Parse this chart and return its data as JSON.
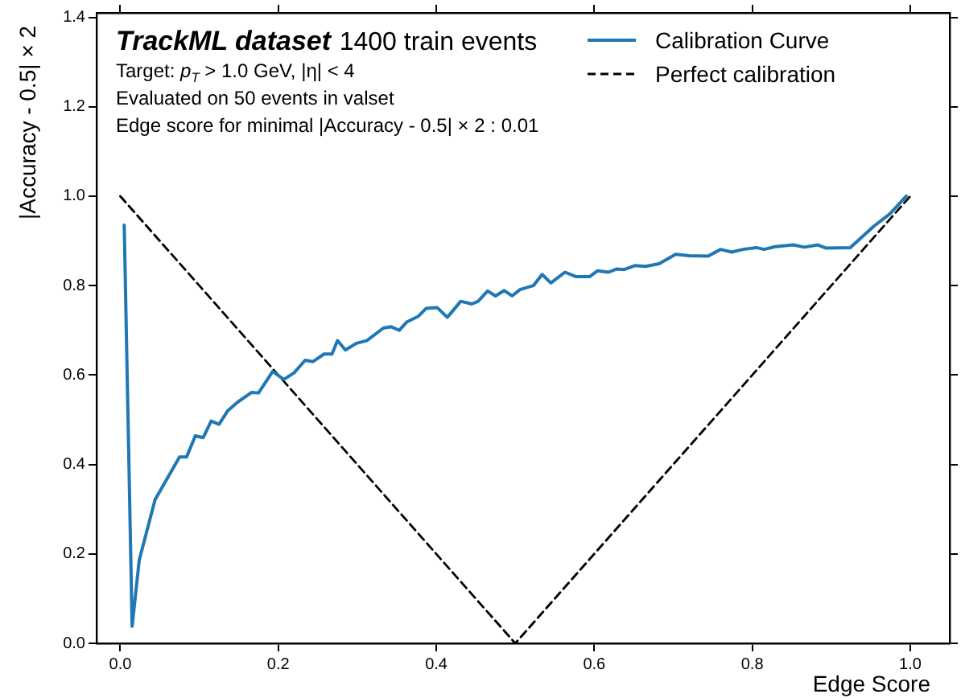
{
  "chart_data": {
    "type": "line",
    "title": "TrackML dataset",
    "subtitle": "1400 train events",
    "xlabel": "Edge Score",
    "ylabel": "|Accuracy - 0.5| × 2",
    "annotations": [
      "Target: p$_{T}$ > 1.0 GeV, |η| < 4",
      "Evaluated on 50 events in valset",
      "Edge score for minimal |Accuracy - 0.5| × 2 : 0.01"
    ],
    "series": [
      {
        "name": "Calibration Curve",
        "color": "#1f77b4",
        "line_style": "solid",
        "x": [
          0.005,
          0.015,
          0.024,
          0.044,
          0.075,
          0.084,
          0.095,
          0.105,
          0.115,
          0.125,
          0.136,
          0.149,
          0.166,
          0.175,
          0.193,
          0.207,
          0.22,
          0.234,
          0.244,
          0.258,
          0.268,
          0.275,
          0.285,
          0.299,
          0.312,
          0.333,
          0.343,
          0.353,
          0.363,
          0.377,
          0.387,
          0.401,
          0.414,
          0.431,
          0.445,
          0.453,
          0.465,
          0.475,
          0.486,
          0.496,
          0.506,
          0.523,
          0.534,
          0.545,
          0.563,
          0.577,
          0.594,
          0.604,
          0.618,
          0.628,
          0.638,
          0.652,
          0.665,
          0.682,
          0.703,
          0.72,
          0.744,
          0.76,
          0.774,
          0.788,
          0.805,
          0.815,
          0.829,
          0.852,
          0.866,
          0.883,
          0.893,
          0.924,
          0.954,
          0.974,
          0.995
        ],
        "values": [
          0.935,
          0.038,
          0.186,
          0.321,
          0.417,
          0.417,
          0.464,
          0.46,
          0.497,
          0.49,
          0.52,
          0.54,
          0.561,
          0.56,
          0.608,
          0.59,
          0.605,
          0.633,
          0.63,
          0.647,
          0.647,
          0.677,
          0.656,
          0.671,
          0.677,
          0.705,
          0.708,
          0.7,
          0.719,
          0.731,
          0.749,
          0.751,
          0.729,
          0.765,
          0.759,
          0.765,
          0.788,
          0.777,
          0.789,
          0.777,
          0.791,
          0.8,
          0.825,
          0.806,
          0.83,
          0.82,
          0.82,
          0.833,
          0.83,
          0.837,
          0.836,
          0.845,
          0.843,
          0.849,
          0.87,
          0.867,
          0.866,
          0.881,
          0.875,
          0.881,
          0.885,
          0.881,
          0.887,
          0.891,
          0.886,
          0.891,
          0.884,
          0.885,
          0.933,
          0.96,
          1.0
        ]
      },
      {
        "name": "Perfect calibration",
        "color": "#000000",
        "line_style": "dashed",
        "x": [
          0,
          0.5,
          1
        ],
        "values": [
          1,
          0,
          1
        ]
      }
    ],
    "xlim": [
      -0.03,
      1.05
    ],
    "ylim": [
      0,
      1.41
    ],
    "xticks": [
      {
        "value": 0,
        "label": "0.0"
      },
      0.2,
      0.4,
      0.6,
      0.8,
      {
        "value": 1,
        "label": "1.0"
      }
    ],
    "yticks": [
      {
        "value": 0,
        "label": "0.0"
      },
      0.2,
      0.4,
      0.6,
      0.8,
      {
        "value": 1,
        "label": "1.0"
      },
      1.2,
      1.4
    ],
    "grid": false,
    "legend": "top right",
    "marker": "none"
  }
}
